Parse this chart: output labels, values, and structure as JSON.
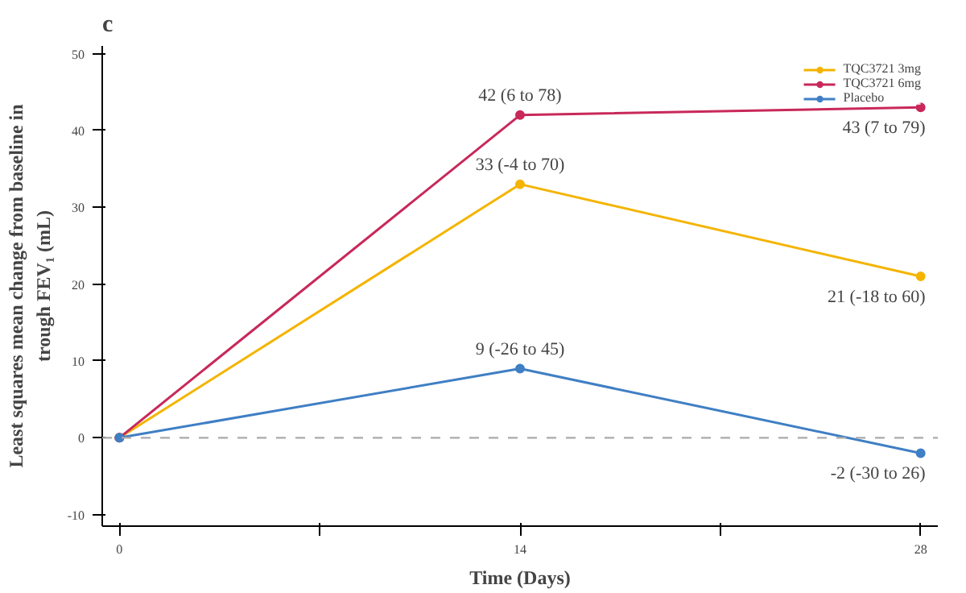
{
  "chart_data": {
    "type": "line",
    "title": "c",
    "xlabel": "Time (Days)",
    "ylabel": "Least squares mean change from baseline in\ntrough FEV₁ (mL)",
    "x": [
      0,
      14,
      28
    ],
    "series": [
      {
        "name": "TQC3721 3mg",
        "color": "#f4b400",
        "values": [
          0,
          33,
          21
        ],
        "value_labels": [
          null,
          "33 (-4 to 70)",
          "21 (-18 to 60)"
        ]
      },
      {
        "name": "TQC3721 6mg",
        "color": "#c8285a",
        "values": [
          0,
          42,
          43
        ],
        "value_labels": [
          null,
          "42 (6 to 78)",
          "43 (7 to 79)"
        ]
      },
      {
        "name": "Placebo",
        "color": "#3f7fc4",
        "values": [
          0,
          9,
          -2
        ],
        "value_labels": [
          null,
          "9 (-26 to 45)",
          "-2 (-30 to 26)"
        ]
      }
    ],
    "xlim": [
      -0.6,
      28.6
    ],
    "xticks": [
      0,
      {
        "value": 7,
        "label": null
      },
      14,
      {
        "value": 21,
        "label": null
      },
      28
    ],
    "ylim": [
      -11.5,
      51
    ],
    "yticks": [
      -10,
      0,
      10,
      20,
      30,
      40,
      50
    ],
    "ref_lines": [
      {
        "axis": "y",
        "value": 0,
        "color": "#aaaaaa",
        "line_style": "dashed"
      }
    ],
    "marker": "circle",
    "line_style": "solid",
    "grid": false,
    "legend": "top right"
  }
}
